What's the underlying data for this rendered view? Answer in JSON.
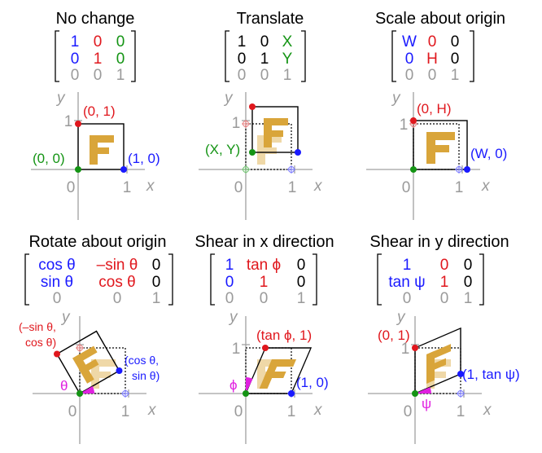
{
  "colors": {
    "black": "#000000",
    "blue": "#1a1aff",
    "red": "#e0171d",
    "green": "#149414",
    "gray": "#9a9a9a",
    "gold": "#d9a53a",
    "gold_light": "#efd8a7",
    "magenta": "#e020e0"
  },
  "axis": {
    "x": "x",
    "y": "y",
    "zero": "0",
    "one": "1"
  },
  "panels": [
    {
      "title": "No change",
      "matrix": [
        [
          "1",
          "0",
          "0"
        ],
        [
          "0",
          "1",
          "0"
        ],
        [
          "0",
          "0",
          "1"
        ]
      ],
      "labels": {
        "p0": "(0, 0)",
        "p1": "(1, 0)",
        "p2": "(0, 1)"
      }
    },
    {
      "title": "Translate",
      "matrix": [
        [
          "1",
          "0",
          "X"
        ],
        [
          "0",
          "1",
          "Y"
        ],
        [
          "0",
          "0",
          "1"
        ]
      ],
      "labels": {
        "p0": "(X, Y)"
      }
    },
    {
      "title": "Scale about origin",
      "matrix": [
        [
          "W",
          "0",
          "0"
        ],
        [
          "0",
          "H",
          "0"
        ],
        [
          "0",
          "0",
          "1"
        ]
      ],
      "labels": {
        "p1": "(W, 0)",
        "p2": "(0, H)"
      }
    },
    {
      "title": "Rotate about origin",
      "matrix": [
        [
          "cos θ",
          "–sin θ",
          "0"
        ],
        [
          "sin θ",
          "cos θ",
          "0"
        ],
        [
          "0",
          "0",
          "1"
        ]
      ],
      "labels": {
        "p1a": "(cos θ,",
        "p1b": "sin θ)",
        "p2a": "(–sin θ,",
        "p2b": "cos θ)",
        "angle": "θ"
      }
    },
    {
      "title": "Shear in x direction",
      "matrix": [
        [
          "1",
          "tan ϕ",
          "0"
        ],
        [
          "0",
          "1",
          "0"
        ],
        [
          "0",
          "0",
          "1"
        ]
      ],
      "labels": {
        "p1": "(1, 0)",
        "p2": "(tan ϕ, 1)",
        "angle": "ϕ"
      }
    },
    {
      "title": "Shear in y direction",
      "matrix": [
        [
          "1",
          "0",
          "0"
        ],
        [
          "tan ψ",
          "1",
          "0"
        ],
        [
          "0",
          "0",
          "1"
        ]
      ],
      "labels": {
        "p1": "(1, tan ψ)",
        "p2": "(0, 1)",
        "angle": "ψ"
      }
    }
  ],
  "glyph": "F"
}
